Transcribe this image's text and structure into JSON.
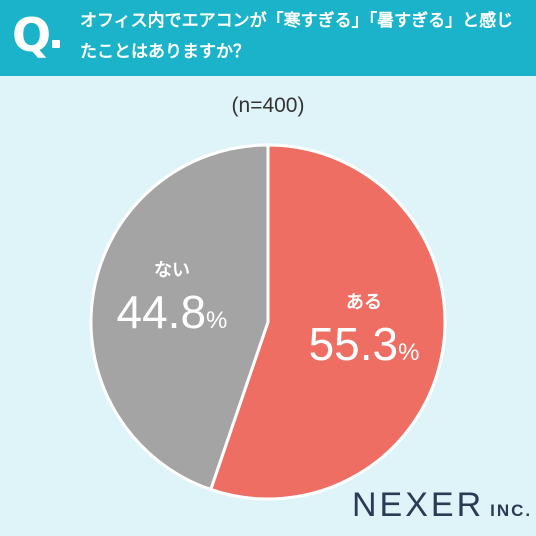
{
  "header": {
    "q_label": "Q",
    "question": "オフィス内でエアコンが「寒すぎる」「暑すぎる」と感じたことはありますか？"
  },
  "sample_size": "(n=400)",
  "colors": {
    "header_bg": "#1bb3c9",
    "background": "#dff4f9",
    "yes": "#ee6e63",
    "no": "#a4a4a4"
  },
  "chart_data": {
    "type": "pie",
    "title": "",
    "slices": [
      {
        "label": "ある",
        "value": 55.3,
        "value_label": "55.3",
        "unit": "%",
        "color": "#ee6e63"
      },
      {
        "label": "ない",
        "value": 44.8,
        "value_label": "44.8",
        "unit": "%",
        "color": "#a4a4a4"
      }
    ]
  },
  "logo": {
    "main": "NEXER",
    "sub": "INC."
  }
}
